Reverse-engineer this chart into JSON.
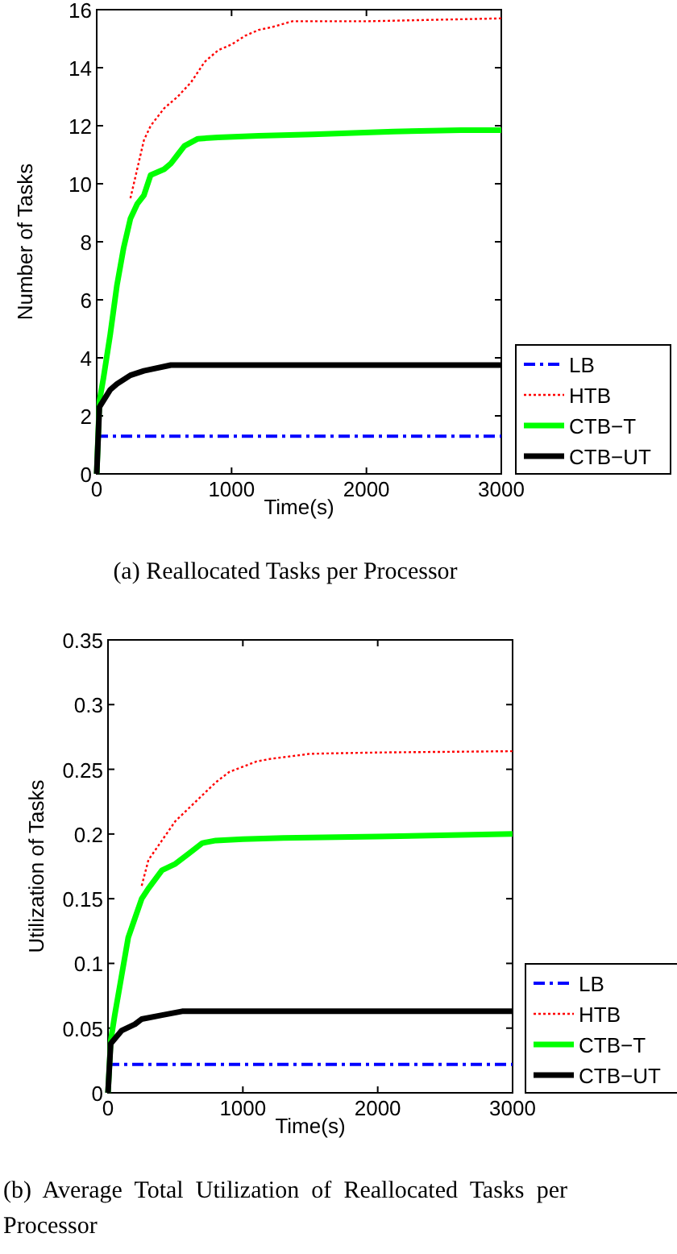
{
  "chart_data": [
    {
      "type": "line",
      "xlabel": "Time(s)",
      "ylabel": "Number of Tasks",
      "xlim": [
        0,
        3000
      ],
      "ylim": [
        0,
        16
      ],
      "xticks": [
        0,
        1000,
        2000,
        3000
      ],
      "yticks": [
        0,
        2,
        4,
        6,
        8,
        10,
        12,
        14,
        16
      ],
      "grid": false,
      "legend": "bottom right",
      "annotations": [
        "(a)  Reallocated  Tasks  per  Processor"
      ],
      "series": [
        {
          "name": "LB",
          "color": "#0000ff",
          "line_style": "dashed",
          "x": [
            0,
            3000
          ],
          "values": [
            1.3,
            1.3
          ]
        },
        {
          "name": "HTB",
          "color": "#ff0000",
          "line_style": "dotted",
          "x": [
            250,
            300,
            350,
            400,
            500,
            600,
            700,
            800,
            900,
            1000,
            1100,
            1200,
            1300,
            1450,
            2000,
            2500,
            3000
          ],
          "values": [
            9.5,
            10.5,
            11.5,
            12,
            12.6,
            13,
            13.5,
            14.2,
            14.6,
            14.8,
            15.1,
            15.3,
            15.4,
            15.6,
            15.6,
            15.65,
            15.7
          ]
        },
        {
          "name": "CTB−T",
          "color": "#00ff00",
          "line_style": "solid",
          "x": [
            0,
            20,
            50,
            100,
            150,
            200,
            250,
            300,
            350,
            400,
            500,
            550,
            600,
            650,
            750,
            900,
            1200,
            1600,
            2200,
            2700,
            3000
          ],
          "values": [
            0,
            2.5,
            3.3,
            4.8,
            6.5,
            7.8,
            8.8,
            9.3,
            9.6,
            10.3,
            10.5,
            10.7,
            11,
            11.3,
            11.55,
            11.6,
            11.65,
            11.7,
            11.8,
            11.85,
            11.85
          ]
        },
        {
          "name": "CTB−UT",
          "color": "#000000",
          "line_style": "solid",
          "x": [
            0,
            20,
            100,
            150,
            250,
            350,
            550,
            3000
          ],
          "values": [
            0,
            2.3,
            2.9,
            3.1,
            3.4,
            3.55,
            3.75,
            3.75
          ]
        }
      ]
    },
    {
      "type": "line",
      "xlabel": "Time(s)",
      "ylabel": "Utilization of Tasks",
      "xlim": [
        0,
        3000
      ],
      "ylim": [
        0,
        0.35
      ],
      "xticks": [
        0,
        1000,
        2000,
        3000
      ],
      "yticks": [
        0,
        0.05,
        0.1,
        0.15,
        0.2,
        0.25,
        0.3,
        0.35
      ],
      "grid": false,
      "legend": "bottom right",
      "annotations": [
        "(b)  Average  Total  Utilization  of  Reallocated Tasks per Processor"
      ],
      "series": [
        {
          "name": "LB",
          "color": "#0000ff",
          "line_style": "dashed",
          "x": [
            0,
            3000
          ],
          "values": [
            0.022,
            0.022
          ]
        },
        {
          "name": "HTB",
          "color": "#ff0000",
          "line_style": "dotted",
          "x": [
            250,
            300,
            400,
            500,
            600,
            700,
            800,
            900,
            1000,
            1100,
            1200,
            1500,
            2000,
            3000
          ],
          "values": [
            0.16,
            0.18,
            0.195,
            0.21,
            0.22,
            0.23,
            0.24,
            0.248,
            0.252,
            0.256,
            0.258,
            0.262,
            0.263,
            0.264
          ]
        },
        {
          "name": "CTB−T",
          "color": "#00ff00",
          "line_style": "solid",
          "x": [
            0,
            20,
            50,
            100,
            150,
            200,
            250,
            300,
            350,
            400,
            500,
            600,
            700,
            800,
            1000,
            1300,
            2000,
            3000
          ],
          "values": [
            0,
            0.04,
            0.06,
            0.09,
            0.12,
            0.135,
            0.15,
            0.158,
            0.165,
            0.172,
            0.177,
            0.185,
            0.193,
            0.195,
            0.196,
            0.197,
            0.198,
            0.2
          ]
        },
        {
          "name": "CTB−UT",
          "color": "#000000",
          "line_style": "solid",
          "x": [
            0,
            20,
            100,
            200,
            250,
            400,
            550,
            3000
          ],
          "values": [
            0,
            0.038,
            0.048,
            0.053,
            0.057,
            0.06,
            0.063,
            0.063
          ]
        }
      ]
    }
  ]
}
